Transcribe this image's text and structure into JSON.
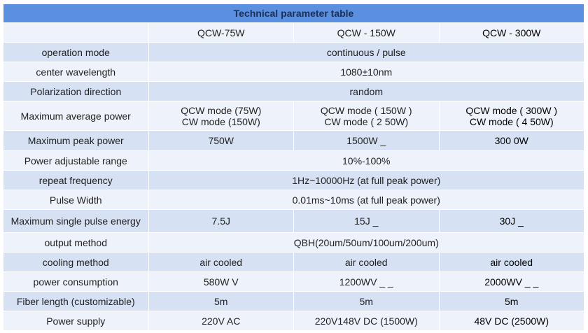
{
  "title": "Technical parameter table",
  "header": [
    "",
    "QCW-75W",
    "QCW - 150W",
    "QCW - 300W"
  ],
  "rows": [
    {
      "label": "operation mode",
      "merged": "continuous / pulse"
    },
    {
      "label": "center wavelength",
      "merged": "1080±10nm"
    },
    {
      "label": "Polarization direction",
      "merged": "random"
    },
    {
      "label": "Maximum average power",
      "cells": [
        [
          "QCW mode (75W)",
          "CW mode (150W)"
        ],
        [
          "QCW mode ( 150W )",
          "CW mode ( 2 50W)"
        ],
        [
          "QCW mode ( 300W )",
          "CW mode ( 4 50W)"
        ]
      ]
    },
    {
      "label": "Maximum peak power",
      "cells": [
        "750W",
        "1500W _",
        "300 0W"
      ]
    },
    {
      "label": "Power adjustable range",
      "merged": "10%-100%"
    },
    {
      "label": "repeat frequency",
      "merged": "1Hz~10000Hz (at full peak power)"
    },
    {
      "label": "Pulse Width",
      "merged": "0.01ms~10ms (at full peak power)"
    },
    {
      "label": "Maximum single pulse energy",
      "cells": [
        "7.5J",
        "15J _",
        "30J _"
      ]
    },
    {
      "label": "output method",
      "merged": "QBH(20um/50um/100um/200um)"
    },
    {
      "label": "cooling method",
      "cells": [
        "air cooled",
        "air cooled",
        "air cooled"
      ]
    },
    {
      "label": "power consumption",
      "cells": [
        "580W V",
        "1200WV _ _",
        "2000WV _ _"
      ]
    },
    {
      "label": "Fiber length (customizable)",
      "cells": [
        "5m",
        "5m",
        "5m"
      ]
    },
    {
      "label": "Power supply",
      "cells": [
        "220V AC",
        "220V148V DC (1500W)",
        "48V DC (2500W)"
      ]
    }
  ]
}
